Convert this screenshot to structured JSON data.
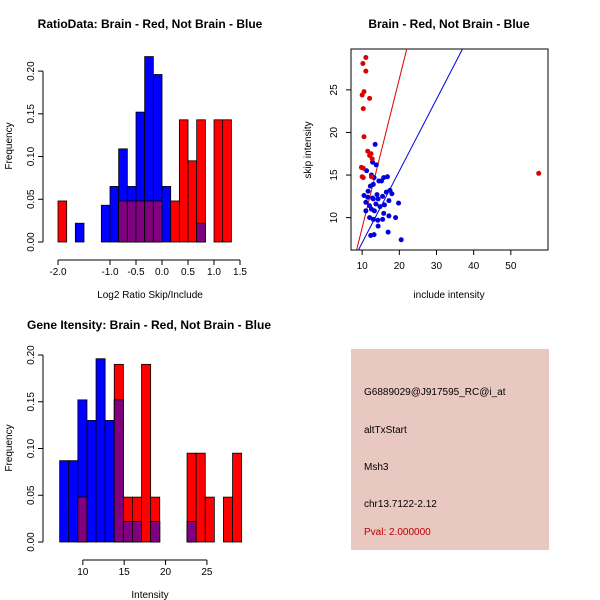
{
  "chart_data": [
    {
      "type": "histogram",
      "title": "RatioData: Brain - Red, Not Brain - Blue",
      "xlabel": "Log2 Ratio Skip/Include",
      "ylabel": "Frequency",
      "xlim": [
        -2.0,
        1.5
      ],
      "ylim": [
        0,
        0.22
      ],
      "xticks": [
        "-2.0",
        "-1.0",
        "-0.5",
        "0.0",
        "0.5",
        "1.0",
        "1.5"
      ],
      "xtick_values": [
        -2.0,
        -1.0,
        -0.5,
        0.0,
        0.5,
        1.0,
        1.5
      ],
      "yticks": [
        "0.00",
        "0.05",
        "0.10",
        "0.15",
        "0.20"
      ],
      "ytick_values": [
        0.0,
        0.05,
        0.1,
        0.15,
        0.2
      ],
      "bin_width": 0.1667,
      "bin_start": -2.0,
      "series": [
        {
          "name": "Not Brain",
          "color": "#0000ff",
          "values": [
            0,
            0,
            0.022,
            0,
            0,
            0.043,
            0.065,
            0.109,
            0.065,
            0.152,
            0.217,
            0.196,
            0.065,
            0,
            0,
            0,
            0.022,
            0,
            0,
            0
          ]
        },
        {
          "name": "Brain",
          "color": "#ff0000",
          "values": [
            0.048,
            0,
            0,
            0,
            0,
            0,
            0,
            0.048,
            0.048,
            0.048,
            0.048,
            0.048,
            0,
            0.048,
            0.143,
            0.095,
            0.143,
            0,
            0.143,
            0.143
          ]
        }
      ],
      "overlap_color": "#800080"
    },
    {
      "type": "scatter",
      "title": "Brain - Red, Not Brain - Blue",
      "xlabel": "include intensity",
      "ylabel": "skip intensity",
      "xlim": [
        7,
        60
      ],
      "ylim": [
        6.2,
        29.8
      ],
      "xticks": [
        "10",
        "20",
        "30",
        "40",
        "50"
      ],
      "xtick_values": [
        10,
        20,
        30,
        40,
        50
      ],
      "yticks": [
        "10",
        "15",
        "20",
        "25"
      ],
      "ytick_values": [
        10,
        15,
        20,
        25
      ],
      "series": [
        {
          "name": "Not Brain",
          "color": "#0000dd",
          "x": [
            13.5,
            13.8,
            11.2,
            12.5,
            13.2,
            14.5,
            15.8,
            16.8,
            15.2,
            12.2,
            13.0,
            11.6,
            17.5,
            18.0,
            14.0,
            13.0,
            10.5,
            11.5,
            12.8,
            14.3,
            15.5,
            16.5,
            11.0,
            12.0,
            13.7,
            14.8,
            16.0,
            17.2,
            19.8,
            12.5,
            13.3,
            15.8,
            17.2,
            19.0,
            11.0,
            12.0,
            13.0,
            14.2,
            20.5,
            12.3,
            13.2,
            17.0,
            14.3,
            15.5,
            12.8
          ],
          "y": [
            18.6,
            16.2,
            15.5,
            15.0,
            14.7,
            14.3,
            14.7,
            14.8,
            14.3,
            13.7,
            13.9,
            13.1,
            13.2,
            12.8,
            12.7,
            12.2,
            12.6,
            12.4,
            12.3,
            12.2,
            12.5,
            13.0,
            11.8,
            11.4,
            11.6,
            11.3,
            11.5,
            12.0,
            11.7,
            11.0,
            10.8,
            10.5,
            10.2,
            10.0,
            10.8,
            10.0,
            9.8,
            9.7,
            7.4,
            7.9,
            8.0,
            8.3,
            9.0,
            9.8,
            16.5
          ],
          "fit": {
            "x": [
              9.0,
              37.0
            ],
            "y": [
              6.2,
              29.8
            ]
          }
        },
        {
          "name": "Brain",
          "color": "#dd0000",
          "x": [
            11.0,
            11.0,
            10.2,
            10.5,
            10.0,
            10.3,
            12.0,
            10.5,
            10.3,
            9.8,
            12.7,
            11.5,
            12.0,
            12.4,
            10.0,
            10.3,
            57.5,
            12.5
          ],
          "y": [
            28.8,
            27.2,
            28.1,
            24.8,
            24.4,
            22.8,
            24.0,
            19.5,
            15.8,
            15.9,
            16.9,
            17.8,
            17.3,
            17.5,
            14.8,
            14.7,
            15.2,
            14.8
          ],
          "fit": {
            "x": [
              8.5,
              22.0
            ],
            "y": [
              6.2,
              29.8
            ]
          }
        }
      ]
    },
    {
      "type": "histogram",
      "title": "Gene Itensity: Brain - Red, Not Brain - Blue",
      "xlabel": "Intensity",
      "ylabel": "Frequency",
      "xlim": [
        7,
        29
      ],
      "ylim": [
        0,
        0.2
      ],
      "xticks": [
        "10",
        "15",
        "20",
        "25"
      ],
      "xtick_values": [
        10,
        15,
        20,
        25
      ],
      "yticks": [
        "0.00",
        "0.05",
        "0.10",
        "0.15",
        "0.20"
      ],
      "ytick_values": [
        0.0,
        0.05,
        0.1,
        0.15,
        0.2
      ],
      "bin_width": 1.1,
      "bin_start": 7.2,
      "series": [
        {
          "name": "Not Brain",
          "color": "#0000ff",
          "values": [
            0.087,
            0.087,
            0.152,
            0.13,
            0.196,
            0.13,
            0.152,
            0.022,
            0.022,
            0,
            0.022,
            0,
            0,
            0,
            0.022,
            0,
            0,
            0,
            0,
            0
          ]
        },
        {
          "name": "Brain",
          "color": "#ff0000",
          "values": [
            0,
            0,
            0.048,
            0,
            0,
            0,
            0.19,
            0.048,
            0.048,
            0.19,
            0.048,
            0,
            0,
            0,
            0.095,
            0.095,
            0.048,
            0,
            0.048,
            0.095
          ]
        }
      ],
      "overlap_color": "#800080"
    }
  ],
  "info_panel": {
    "probe_id": "G6889029@J917595_RC@i_at",
    "event_type": "altTxStart",
    "gene": "Msh3",
    "location": "chr13.7122-2.12",
    "pval": "Pval: 2.000000",
    "background": "#e8c8c0",
    "pval_color": "#bb0000"
  }
}
